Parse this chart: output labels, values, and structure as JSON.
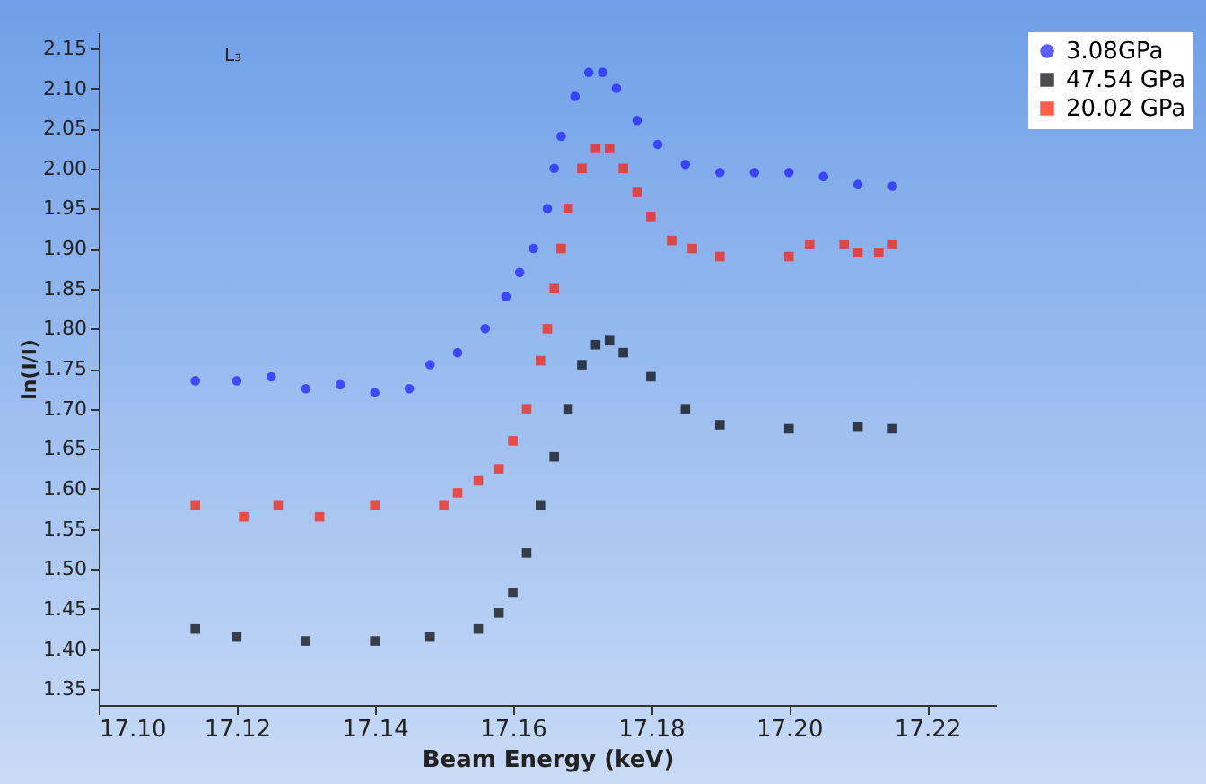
{
  "chart_data": {
    "type": "scatter",
    "xlabel": "Beam Energy (keV)",
    "ylabel": "ln(I/I)",
    "annotations": [
      "L₃"
    ],
    "marker": "square",
    "legend": "right",
    "grid": false,
    "xlim": [
      17.1,
      17.23
    ],
    "ylim": [
      1.33,
      2.17
    ],
    "xticks": [
      {
        "value": 17.1,
        "label": "17.10"
      },
      {
        "value": 17.12,
        "label": "17.12"
      },
      {
        "value": 17.14,
        "label": "17.14"
      },
      {
        "value": 17.16,
        "label": "17.16"
      },
      {
        "value": 17.18,
        "label": "17.18"
      },
      {
        "value": 17.2,
        "label": "17.20"
      },
      {
        "value": 17.22,
        "label": "17.22"
      }
    ],
    "yticks": [
      1.35,
      {
        "value": 1.4,
        "label": "1.40"
      },
      1.45,
      {
        "value": 1.5,
        "label": "1.50"
      },
      1.55,
      {
        "value": 1.6,
        "label": "1.60"
      },
      1.65,
      {
        "value": 1.7,
        "label": "1.70"
      },
      1.75,
      {
        "value": 1.8,
        "label": "1.80"
      },
      1.85,
      {
        "value": 1.9,
        "label": "1.90"
      },
      1.95,
      {
        "value": 2.0,
        "label": "2.00"
      },
      2.05,
      {
        "value": 2.1,
        "label": "2.10"
      },
      2.15
    ],
    "series": [
      {
        "name": "3.08GPa",
        "color": "#1a1aff",
        "marker": "circle",
        "x": [
          17.114,
          17.12,
          17.125,
          17.13,
          17.135,
          17.14,
          17.145,
          17.148,
          17.152,
          17.156,
          17.159,
          17.161,
          17.163,
          17.165,
          17.166,
          17.167,
          17.169,
          17.171,
          17.173,
          17.175,
          17.178,
          17.181,
          17.185,
          17.19,
          17.195,
          17.2,
          17.205,
          17.21,
          17.215
        ],
        "values": [
          1.735,
          1.735,
          1.74,
          1.725,
          1.73,
          1.72,
          1.725,
          1.755,
          1.77,
          1.8,
          1.84,
          1.87,
          1.9,
          1.95,
          2.0,
          2.04,
          2.09,
          2.12,
          2.12,
          2.1,
          2.06,
          2.03,
          2.005,
          1.995,
          1.995,
          1.995,
          1.99,
          1.98,
          1.978
        ]
      },
      {
        "name": "47.54 GPa",
        "color": "#000000",
        "x": [
          17.114,
          17.12,
          17.13,
          17.14,
          17.148,
          17.155,
          17.158,
          17.16,
          17.162,
          17.164,
          17.166,
          17.168,
          17.17,
          17.172,
          17.174,
          17.176,
          17.18,
          17.185,
          17.19,
          17.2,
          17.21,
          17.215
        ],
        "values": [
          1.425,
          1.415,
          1.41,
          1.41,
          1.415,
          1.425,
          1.445,
          1.47,
          1.52,
          1.58,
          1.64,
          1.7,
          1.755,
          1.78,
          1.785,
          1.77,
          1.74,
          1.7,
          1.68,
          1.675,
          1.677,
          1.675
        ]
      },
      {
        "name": "20.02 GPa",
        "color": "#ff1a00",
        "x": [
          17.114,
          17.121,
          17.126,
          17.132,
          17.14,
          17.15,
          17.152,
          17.155,
          17.158,
          17.16,
          17.162,
          17.164,
          17.165,
          17.166,
          17.167,
          17.168,
          17.17,
          17.172,
          17.174,
          17.176,
          17.178,
          17.18,
          17.183,
          17.186,
          17.19,
          17.2,
          17.203,
          17.208,
          17.21,
          17.213,
          17.215
        ],
        "values": [
          1.58,
          1.565,
          1.58,
          1.565,
          1.58,
          1.58,
          1.595,
          1.61,
          1.625,
          1.66,
          1.7,
          1.76,
          1.8,
          1.85,
          1.9,
          1.95,
          2.0,
          2.025,
          2.025,
          2.0,
          1.97,
          1.94,
          1.91,
          1.9,
          1.89,
          1.89,
          1.905,
          1.905,
          1.895,
          1.895,
          1.905
        ]
      }
    ]
  }
}
